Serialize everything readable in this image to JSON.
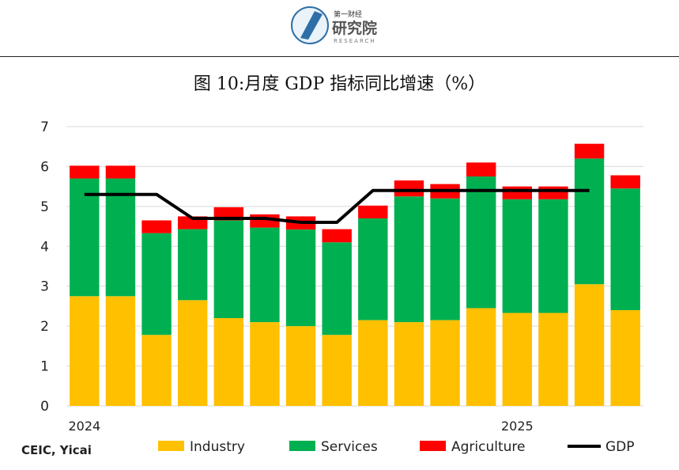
{
  "logo": {
    "line1": "第一财经",
    "line2": "研究院",
    "line3": "RESEARCH"
  },
  "title": "图 10:月度 GDP 指标同比增速（%）",
  "source": "CEIC, Yicai",
  "colors": {
    "industry": "#FFC000",
    "services": "#00B050",
    "agriculture": "#FF0000",
    "gdp": "#000000",
    "grid": "#D9D9D9"
  },
  "chart_data": {
    "type": "bar",
    "stacked": true,
    "x_labels": [
      "2024",
      "",
      "",
      "",
      "",
      "",
      "",
      "",
      "",
      "",
      "",
      "",
      "2025",
      "",
      "",
      ""
    ],
    "series": [
      {
        "name": "Industry",
        "type": "bar",
        "values": [
          2.75,
          2.75,
          1.78,
          2.65,
          2.2,
          2.1,
          2.0,
          1.78,
          2.15,
          2.1,
          2.15,
          2.45,
          2.33,
          2.33,
          3.05,
          2.4
        ]
      },
      {
        "name": "Services",
        "type": "bar",
        "values": [
          2.95,
          2.95,
          2.55,
          1.78,
          2.45,
          2.37,
          2.42,
          2.32,
          2.55,
          3.15,
          3.05,
          3.3,
          2.85,
          2.85,
          3.15,
          3.05
        ]
      },
      {
        "name": "Agriculture",
        "type": "bar",
        "values": [
          0.32,
          0.32,
          0.32,
          0.32,
          0.33,
          0.33,
          0.33,
          0.33,
          0.32,
          0.4,
          0.36,
          0.35,
          0.32,
          0.32,
          0.37,
          0.33
        ]
      },
      {
        "name": "GDP",
        "type": "line",
        "values": [
          5.3,
          5.3,
          5.3,
          4.7,
          4.7,
          4.7,
          4.6,
          4.6,
          5.4,
          5.4,
          5.4,
          5.4,
          5.4,
          5.4,
          5.4,
          null
        ]
      }
    ],
    "ylim": [
      0,
      7
    ],
    "yticks": [
      0,
      1,
      2,
      3,
      4,
      5,
      6,
      7
    ],
    "grid": true,
    "legend_position": "bottom"
  }
}
